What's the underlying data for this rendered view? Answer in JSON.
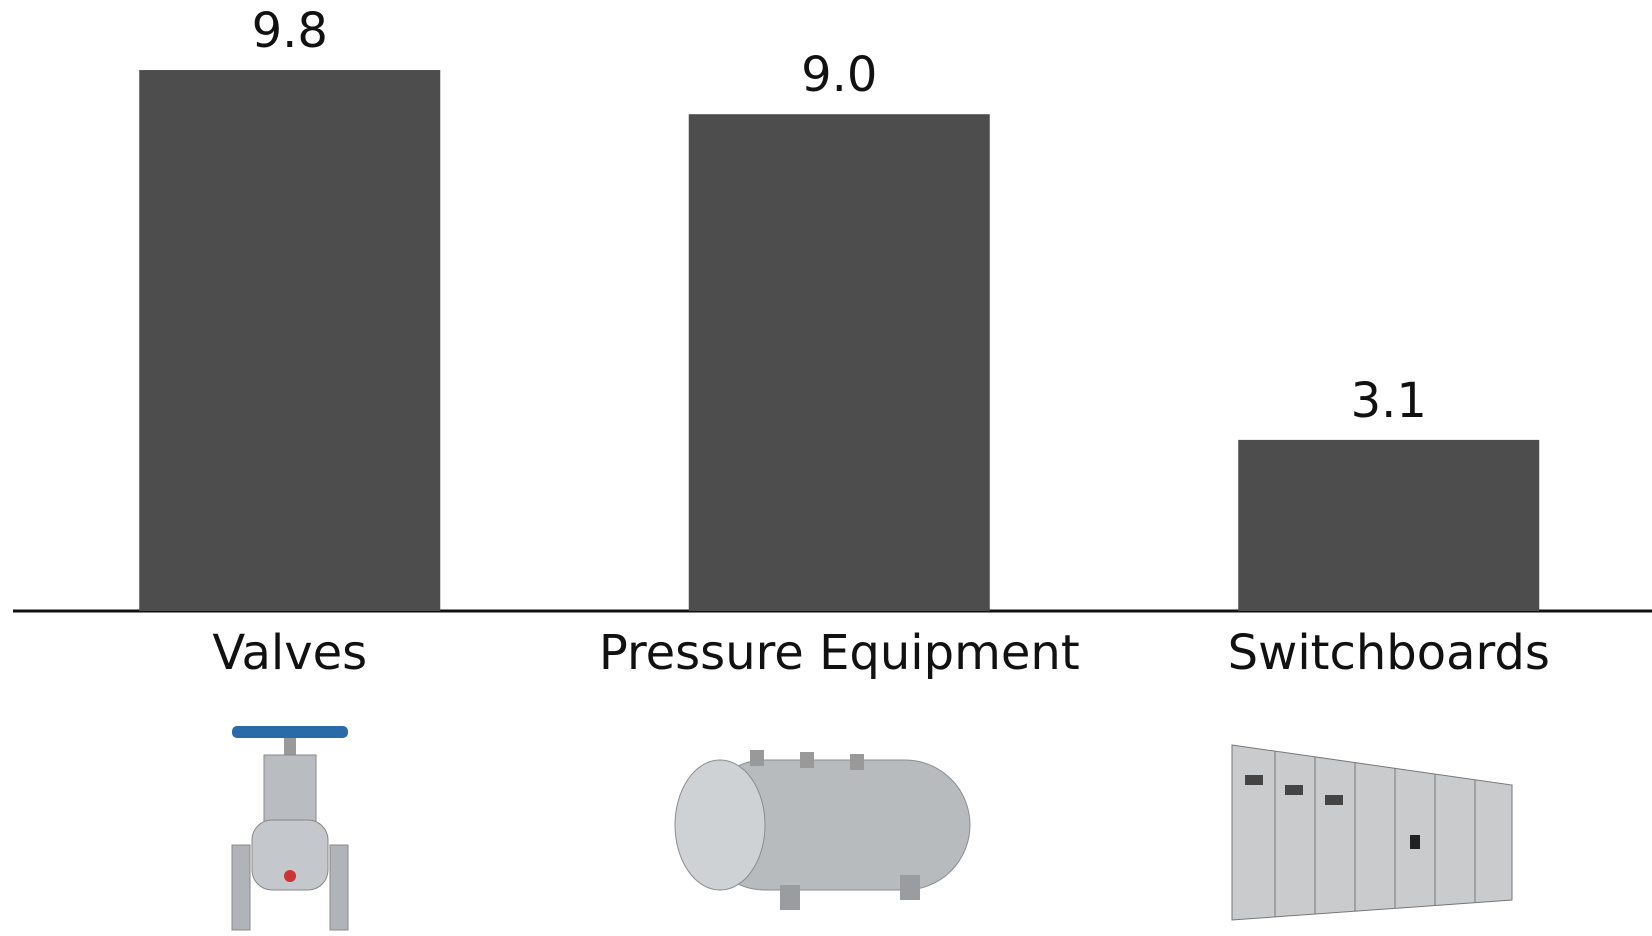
{
  "chart_data": {
    "type": "bar",
    "categories": [
      "Valves",
      "Pressure Equipment",
      "Switchboards"
    ],
    "values": [
      9.8,
      9.0,
      3.1
    ],
    "value_labels": [
      "9.8",
      "9.0",
      "3.1"
    ],
    "color": "#4d4d4d"
  }
}
